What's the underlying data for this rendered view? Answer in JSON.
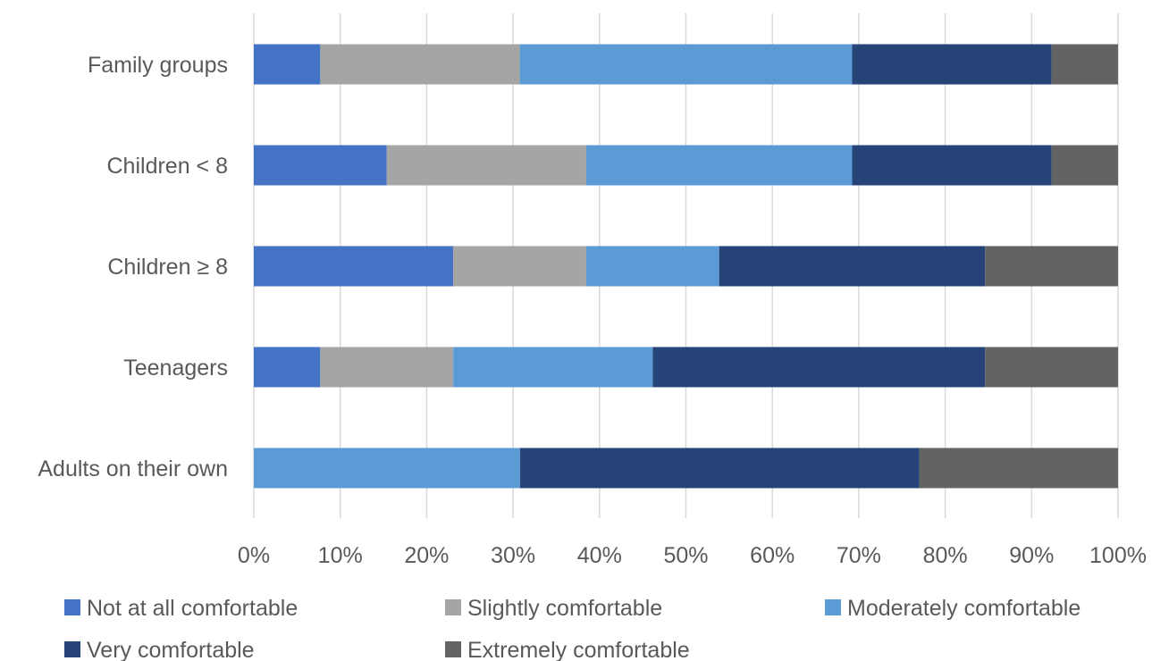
{
  "chart_data": {
    "type": "bar",
    "orientation": "horizontal",
    "stacked": "percent",
    "title": "",
    "xlabel": "",
    "ylabel": "",
    "categories": [
      "Family groups",
      "Children < 8",
      "Children ≥ 8",
      "Teenagers",
      "Adults on their own"
    ],
    "x_ticks": [
      "0%",
      "10%",
      "20%",
      "30%",
      "40%",
      "50%",
      "60%",
      "70%",
      "80%",
      "90%",
      "100%"
    ],
    "xlim": [
      0,
      100
    ],
    "grid": "vertical",
    "legend_position": "bottom",
    "series": [
      {
        "name": "Not at all comfortable",
        "color": "#4472C4",
        "values": [
          7.7,
          15.4,
          23.1,
          7.7,
          0
        ]
      },
      {
        "name": "Slightly comfortable",
        "color": "#A5A5A5",
        "values": [
          23.1,
          23.1,
          15.4,
          15.4,
          0
        ]
      },
      {
        "name": "Moderately comfortable",
        "color": "#5B9BD5",
        "values": [
          38.5,
          30.8,
          15.4,
          23.1,
          30.8
        ]
      },
      {
        "name": "Very comfortable",
        "color": "#264478",
        "values": [
          23.1,
          23.1,
          30.8,
          38.5,
          46.2
        ]
      },
      {
        "name": "Extremely comfortable",
        "color": "#636363",
        "values": [
          7.7,
          7.7,
          15.4,
          15.4,
          23.0
        ]
      }
    ]
  }
}
